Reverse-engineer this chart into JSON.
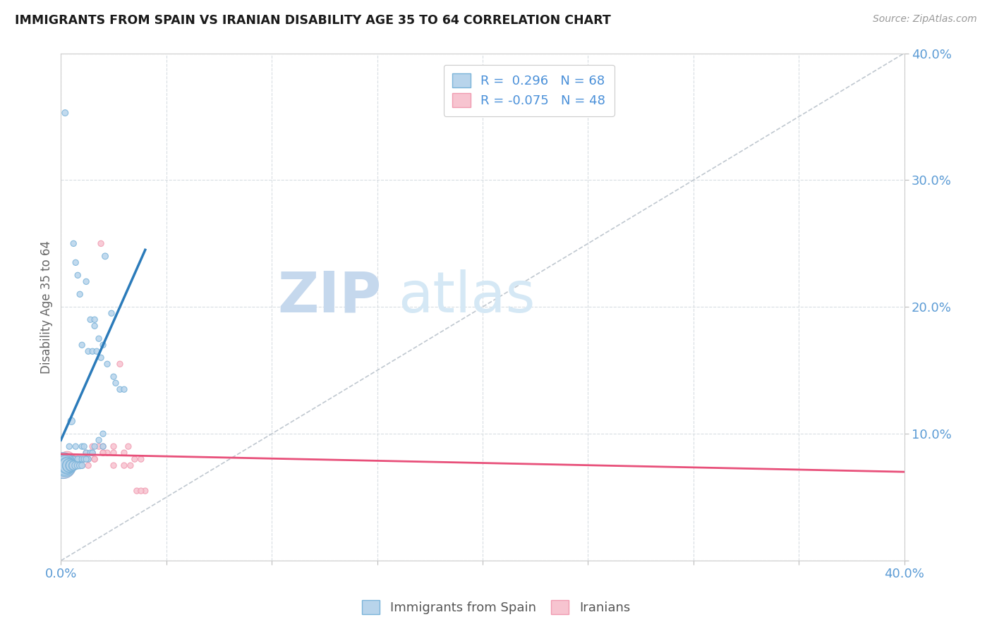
{
  "title": "IMMIGRANTS FROM SPAIN VS IRANIAN DISABILITY AGE 35 TO 64 CORRELATION CHART",
  "source": "Source: ZipAtlas.com",
  "ylabel": "Disability Age 35 to 64",
  "xlim": [
    0.0,
    0.4
  ],
  "ylim": [
    0.0,
    0.4
  ],
  "blue_color": "#7ab3d9",
  "blue_face": "#b8d4eb",
  "pink_color": "#f09ab0",
  "pink_face": "#f7c4d0",
  "trend_blue": "#2b7bba",
  "trend_pink": "#e8507a",
  "ref_line_color": "#c0c8d0",
  "grid_color": "#d8dde2",
  "watermark_zip": "ZIP",
  "watermark_atlas": "atlas",
  "blue_x": [
    0.002,
    0.003,
    0.004,
    0.005,
    0.005,
    0.006,
    0.006,
    0.007,
    0.007,
    0.008,
    0.008,
    0.009,
    0.009,
    0.01,
    0.01,
    0.011,
    0.012,
    0.013,
    0.014,
    0.015,
    0.016,
    0.016,
    0.017,
    0.018,
    0.019,
    0.02,
    0.021,
    0.022,
    0.024,
    0.025,
    0.026,
    0.028,
    0.03,
    0.001,
    0.002,
    0.003,
    0.004,
    0.005,
    0.006,
    0.007,
    0.008,
    0.009,
    0.01,
    0.011,
    0.012,
    0.013,
    0.014,
    0.016,
    0.018,
    0.02,
    0.001,
    0.002,
    0.002,
    0.003,
    0.003,
    0.004,
    0.004,
    0.005,
    0.005,
    0.006,
    0.006,
    0.007,
    0.008,
    0.009,
    0.01,
    0.012,
    0.015,
    0.02
  ],
  "blue_y": [
    0.353,
    0.07,
    0.09,
    0.08,
    0.11,
    0.08,
    0.25,
    0.09,
    0.235,
    0.08,
    0.225,
    0.08,
    0.21,
    0.09,
    0.17,
    0.09,
    0.22,
    0.165,
    0.19,
    0.165,
    0.185,
    0.19,
    0.165,
    0.175,
    0.16,
    0.17,
    0.24,
    0.155,
    0.195,
    0.145,
    0.14,
    0.135,
    0.135,
    0.08,
    0.075,
    0.075,
    0.075,
    0.075,
    0.08,
    0.075,
    0.08,
    0.075,
    0.08,
    0.08,
    0.085,
    0.08,
    0.085,
    0.09,
    0.095,
    0.1,
    0.075,
    0.075,
    0.075,
    0.075,
    0.075,
    0.075,
    0.075,
    0.075,
    0.075,
    0.075,
    0.075,
    0.075,
    0.075,
    0.075,
    0.075,
    0.08,
    0.085,
    0.09
  ],
  "blue_size": [
    40,
    35,
    35,
    55,
    55,
    35,
    35,
    35,
    35,
    35,
    35,
    35,
    35,
    35,
    35,
    35,
    35,
    35,
    35,
    35,
    35,
    35,
    35,
    35,
    35,
    35,
    40,
    35,
    35,
    35,
    35,
    35,
    35,
    35,
    35,
    35,
    35,
    35,
    35,
    35,
    35,
    35,
    35,
    35,
    35,
    35,
    35,
    35,
    35,
    35,
    700,
    500,
    400,
    300,
    250,
    200,
    180,
    150,
    120,
    100,
    80,
    60,
    50,
    45,
    40,
    35,
    35,
    35
  ],
  "pink_x": [
    0.001,
    0.002,
    0.002,
    0.003,
    0.003,
    0.004,
    0.004,
    0.005,
    0.005,
    0.006,
    0.006,
    0.007,
    0.007,
    0.008,
    0.009,
    0.01,
    0.011,
    0.012,
    0.013,
    0.015,
    0.016,
    0.018,
    0.019,
    0.02,
    0.022,
    0.025,
    0.028,
    0.03,
    0.032,
    0.035,
    0.038,
    0.04,
    0.002,
    0.004,
    0.006,
    0.008,
    0.01,
    0.013,
    0.016,
    0.02,
    0.025,
    0.03,
    0.036,
    0.015,
    0.02,
    0.025,
    0.033,
    0.038
  ],
  "pink_y": [
    0.075,
    0.075,
    0.075,
    0.075,
    0.08,
    0.075,
    0.075,
    0.075,
    0.08,
    0.075,
    0.08,
    0.075,
    0.08,
    0.075,
    0.08,
    0.08,
    0.08,
    0.085,
    0.08,
    0.09,
    0.08,
    0.09,
    0.25,
    0.085,
    0.085,
    0.09,
    0.155,
    0.085,
    0.09,
    0.08,
    0.08,
    0.055,
    0.075,
    0.075,
    0.08,
    0.08,
    0.075,
    0.075,
    0.08,
    0.09,
    0.085,
    0.075,
    0.055,
    0.085,
    0.085,
    0.075,
    0.075,
    0.055
  ],
  "pink_size": [
    700,
    500,
    400,
    300,
    250,
    200,
    160,
    130,
    100,
    80,
    60,
    50,
    45,
    40,
    38,
    36,
    35,
    35,
    35,
    35,
    35,
    35,
    35,
    35,
    35,
    35,
    35,
    35,
    35,
    35,
    35,
    35,
    80,
    60,
    45,
    38,
    35,
    35,
    35,
    35,
    35,
    35,
    35,
    35,
    35,
    35,
    35,
    35
  ],
  "blue_trend_x0": 0.0,
  "blue_trend_y0": 0.095,
  "blue_trend_x1": 0.04,
  "blue_trend_y1": 0.245,
  "pink_trend_x0": 0.0,
  "pink_trend_y0": 0.084,
  "pink_trend_x1": 0.4,
  "pink_trend_y1": 0.07
}
